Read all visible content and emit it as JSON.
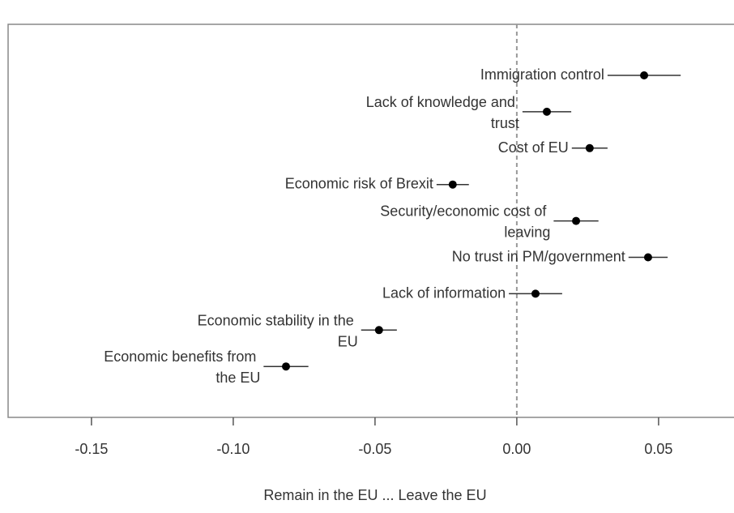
{
  "chart_data": {
    "type": "dot-errorbar",
    "xlabel": "Remain in the EU ... Leave the EU",
    "categories": [
      "Immigration control",
      "Lack of knowledge and trust",
      "Cost of EU",
      "Economic risk of Brexit",
      "Security/economic cost of leaving",
      "No trust in PM/government",
      "Lack of information",
      "Economic stability in the EU",
      "Economic benefits from the EU"
    ],
    "values": [
      0.0449,
      0.0106,
      0.0257,
      -0.0226,
      0.0209,
      0.0463,
      0.0066,
      -0.0486,
      -0.0814
    ],
    "errors": [
      0.0129,
      0.0086,
      0.0063,
      0.0057,
      0.0079,
      0.0069,
      0.0094,
      0.0063,
      0.0079
    ],
    "color": "#000000",
    "xlim": [
      -0.1794,
      0.0766
    ],
    "xticks": [
      -0.15,
      {
        "value": -0.1,
        "label": "-0.10"
      },
      -0.05,
      {
        "value": 0,
        "label": "0.00"
      },
      0.05
    ],
    "reference_line": 0
  }
}
